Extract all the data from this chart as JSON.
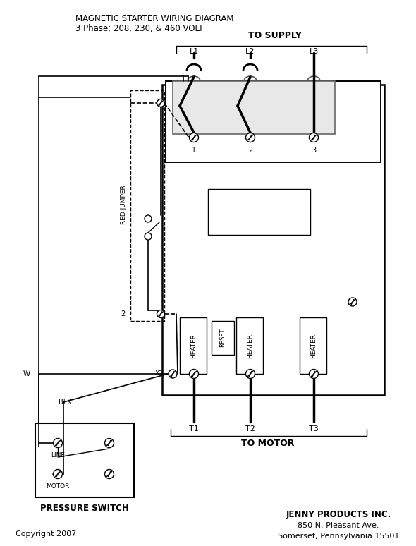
{
  "title_line1": "MAGNETIC STARTER WIRING DIAGRAM",
  "title_line2": "3 Phase; 208, 230, & 460 VOLT",
  "to_supply": "TO SUPPLY",
  "to_motor": "TO MOTOR",
  "pressure_switch_label": "PRESSURE SWITCH",
  "copyright": "Copyright 2007",
  "company_line1": "JENNY PRODUCTS INC.",
  "company_line2": "850 N. Pleasant Ave.",
  "company_line3": "Somerset, Pennsylvania 15501",
  "bg_color": "#ffffff",
  "line_color": "#000000",
  "fig_width": 5.9,
  "fig_height": 7.74
}
